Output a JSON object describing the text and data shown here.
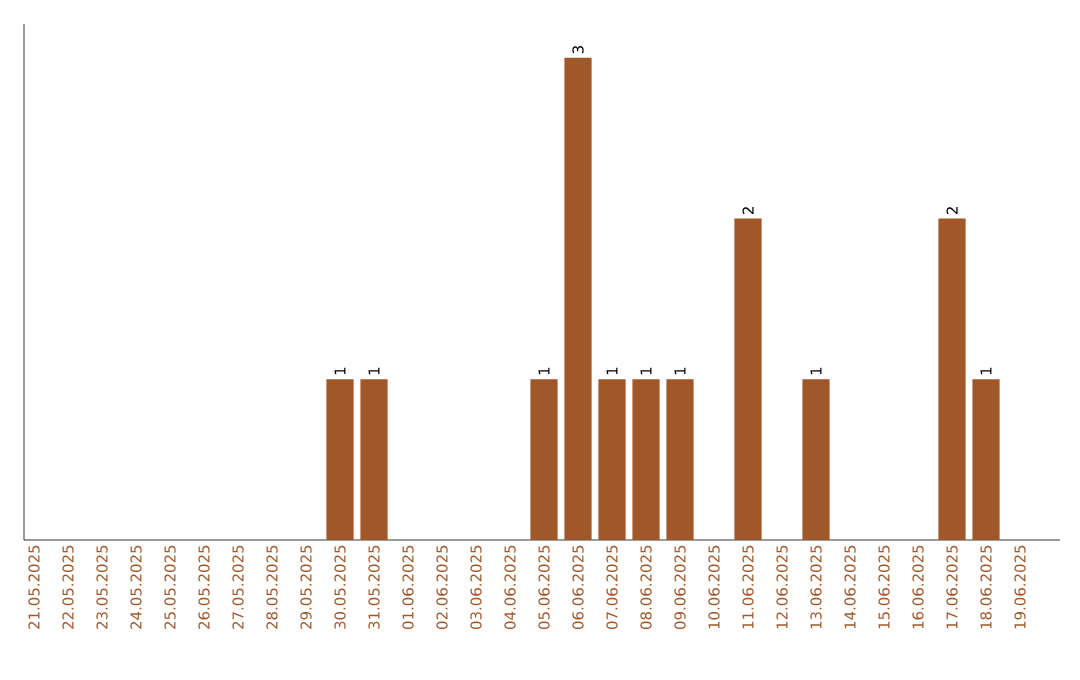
{
  "chart_data": {
    "type": "bar",
    "categories": [
      "21.05.2025",
      "22.05.2025",
      "23.05.2025",
      "24.05.2025",
      "25.05.2025",
      "26.05.2025",
      "27.05.2025",
      "28.05.2025",
      "29.05.2025",
      "30.05.2025",
      "31.05.2025",
      "01.06.2025",
      "02.06.2025",
      "03.06.2025",
      "04.06.2025",
      "05.06.2025",
      "06.06.2025",
      "07.06.2025",
      "08.06.2025",
      "09.06.2025",
      "10.06.2025",
      "11.06.2025",
      "12.06.2025",
      "13.06.2025",
      "14.06.2025",
      "15.06.2025",
      "16.06.2025",
      "17.06.2025",
      "18.06.2025",
      "19.06.2025"
    ],
    "values": [
      0,
      0,
      0,
      0,
      0,
      0,
      0,
      0,
      0,
      1,
      1,
      0,
      0,
      0,
      0,
      1,
      3,
      1,
      1,
      1,
      0,
      2,
      0,
      1,
      0,
      0,
      0,
      2,
      1,
      0
    ],
    "value_labels": [
      null,
      null,
      null,
      null,
      null,
      null,
      null,
      null,
      null,
      "1",
      "1",
      null,
      null,
      null,
      null,
      "1",
      "3",
      "1",
      "1",
      "1",
      null,
      "2",
      null,
      "1",
      null,
      null,
      null,
      "2",
      "1",
      null
    ],
    "color": "#a0582a"
  }
}
